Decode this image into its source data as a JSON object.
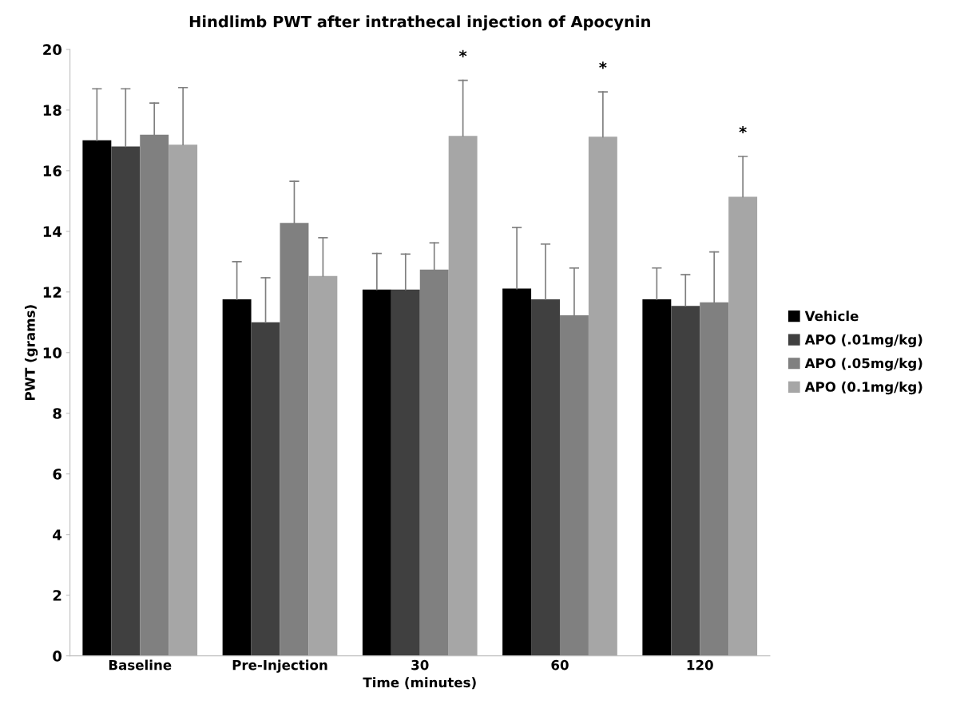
{
  "chart_data": {
    "type": "bar",
    "title": "Hindlimb PWT after intrathecal injection of Apocynin",
    "xlabel": "Time (minutes)",
    "ylabel": "PWT (grams)",
    "categories": [
      "Baseline",
      "Pre-Injection",
      "30",
      "60",
      "120"
    ],
    "series": [
      {
        "name": "Vehicle",
        "color": "#000000",
        "values": [
          17.0,
          11.76,
          12.08,
          12.11,
          11.76
        ],
        "errors": [
          [
            17.0,
            18.7
          ],
          [
            11.76,
            13.0
          ],
          [
            12.08,
            13.27
          ],
          [
            12.11,
            14.13
          ],
          [
            11.76,
            12.79
          ]
        ]
      },
      {
        "name": "APO (.01mg/kg)",
        "color": "#404040",
        "values": [
          16.8,
          11.0,
          12.08,
          11.76,
          11.54
        ],
        "errors": [
          [
            16.8,
            18.7
          ],
          [
            11.0,
            12.47
          ],
          [
            12.08,
            13.25
          ],
          [
            11.76,
            13.58
          ],
          [
            11.54,
            12.57
          ]
        ]
      },
      {
        "name": "APO (.05mg/kg)",
        "color": "#808080",
        "values": [
          17.19,
          14.28,
          12.74,
          11.23,
          11.66
        ],
        "errors": [
          [
            17.19,
            18.23
          ],
          [
            14.28,
            15.65
          ],
          [
            12.74,
            13.62
          ],
          [
            11.23,
            12.79
          ],
          [
            11.66,
            13.32
          ]
        ]
      },
      {
        "name": "APO (0.1mg/kg)",
        "color": "#a6a6a6",
        "values": [
          16.86,
          12.53,
          17.15,
          17.12,
          15.14
        ],
        "errors": [
          [
            16.86,
            18.74
          ],
          [
            12.53,
            13.79
          ],
          [
            17.15,
            18.98
          ],
          [
            17.12,
            18.6
          ],
          [
            15.14,
            16.47
          ]
        ]
      }
    ],
    "ylim": [
      0,
      20
    ],
    "yticks": [
      0,
      2,
      4,
      6,
      8,
      10,
      12,
      14,
      16,
      18,
      20
    ],
    "grid": false,
    "legend": "right",
    "annotations": [
      "*",
      "*",
      "*"
    ]
  }
}
